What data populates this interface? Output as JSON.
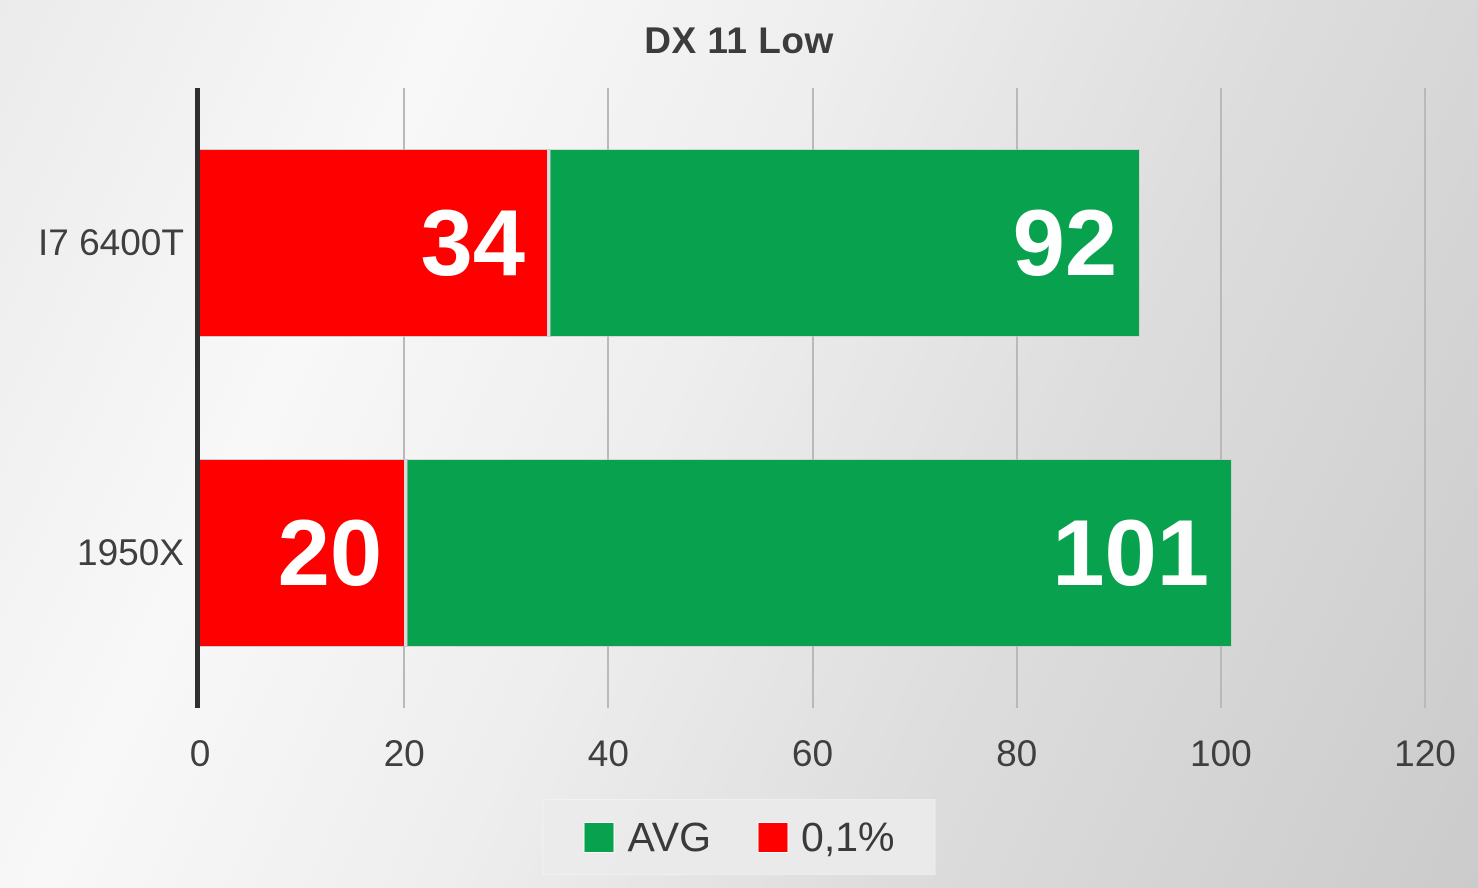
{
  "title": "DX 11 Low",
  "chart_data": {
    "type": "bar",
    "orientation": "horizontal",
    "title": "DX 11 Low",
    "categories": [
      "I7 6400T",
      "1950X"
    ],
    "series": [
      {
        "name": "AVG",
        "color": "#08A24E",
        "values": [
          92,
          101
        ]
      },
      {
        "name": "0,1%",
        "color": "#FE0000",
        "values": [
          34,
          20
        ]
      }
    ],
    "xlabel": "",
    "ylabel": "",
    "xlim": [
      0,
      120
    ],
    "xticks": [
      0,
      20,
      40,
      60,
      80,
      100,
      120
    ],
    "grid": true,
    "bar_style": "overlapped",
    "value_labels": "inside-end",
    "legend_position": "bottom"
  },
  "colors": {
    "avg_green": "#08A24E",
    "p01_red": "#FE0000",
    "text": "#3F3F3F",
    "gridline": "#B9B9B9",
    "axis": "#2F2F2F",
    "value_label": "#FFFFFF"
  }
}
